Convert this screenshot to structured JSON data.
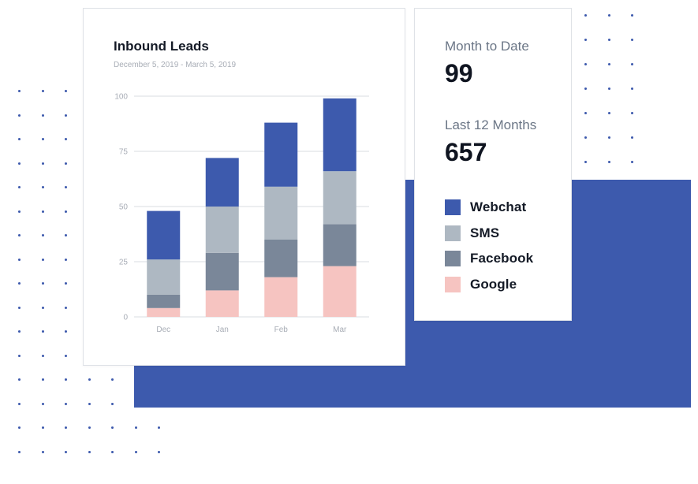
{
  "chart_data": {
    "type": "bar",
    "stacked": true,
    "title": "Inbound Leads",
    "subtitle": "December 5, 2019 - March 5, 2019",
    "categories": [
      "Dec",
      "Jan",
      "Feb",
      "Mar"
    ],
    "ylim": [
      0,
      100
    ],
    "yticks": [
      0,
      25,
      50,
      75,
      100
    ],
    "grid": true,
    "legend_position": "right",
    "series": [
      {
        "name": "Google",
        "color": "#f6c4c1",
        "values": [
          4,
          12,
          18,
          23
        ]
      },
      {
        "name": "Facebook",
        "color": "#7a8799",
        "values": [
          6,
          17,
          17,
          19
        ]
      },
      {
        "name": "SMS",
        "color": "#aeb8c2",
        "values": [
          16,
          21,
          24,
          24
        ]
      },
      {
        "name": "Webchat",
        "color": "#3d5aad",
        "values": [
          22,
          22,
          29,
          33
        ]
      }
    ]
  },
  "stats": {
    "month_to_date_label": "Month to Date",
    "month_to_date_value": "99",
    "last_12_label": "Last 12 Months",
    "last_12_value": "657"
  },
  "legend": [
    {
      "label": "Webchat",
      "color": "#3d5aad"
    },
    {
      "label": "SMS",
      "color": "#aeb8c2"
    },
    {
      "label": "Facebook",
      "color": "#7a8799"
    },
    {
      "label": "Google",
      "color": "#f6c4c1"
    }
  ],
  "colors": {
    "accent": "#3d5aad",
    "dot": "#3d5aad"
  }
}
